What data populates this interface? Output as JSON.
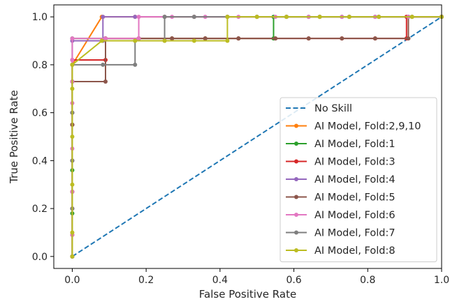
{
  "chart_data": {
    "type": "line",
    "title": "",
    "xlabel": "False Positive Rate",
    "ylabel": "True Positive Rate",
    "xlim": [
      -0.05,
      1.0
    ],
    "ylim": [
      -0.05,
      1.05
    ],
    "xticks": [
      "0.0",
      "0.2",
      "0.4",
      "0.6",
      "0.8",
      "1.0"
    ],
    "yticks": [
      "0.0",
      "0.2",
      "0.4",
      "0.6",
      "0.8",
      "1.0"
    ],
    "grid": false,
    "legend_position": "lower-right",
    "series": [
      {
        "name": "No Skill",
        "color": "#1f77b4",
        "style": "dashed",
        "markers": false,
        "x": [
          0,
          1
        ],
        "y": [
          0,
          1
        ]
      },
      {
        "name": "AI Model, Fold:2,9,10",
        "color": "#ff7f0e",
        "style": "solid",
        "markers": true,
        "x": [
          0,
          0,
          0,
          0,
          0,
          0.08,
          0.17,
          0.25,
          0.33,
          0.42,
          0.5,
          0.58,
          0.67,
          0.75,
          0.83,
          0.92,
          1.0
        ],
        "y": [
          0,
          0.2,
          0.4,
          0.6,
          0.8,
          1.0,
          1.0,
          1.0,
          1.0,
          1.0,
          1.0,
          1.0,
          1.0,
          1.0,
          1.0,
          1.0,
          1.0
        ]
      },
      {
        "name": "AI Model, Fold:1",
        "color": "#2ca02c",
        "style": "solid",
        "markers": true,
        "x": [
          0,
          0,
          0,
          0,
          0,
          0,
          0.09,
          0.18,
          0.27,
          0.36,
          0.45,
          0.545,
          0.545,
          0.64,
          0.73,
          0.82,
          0.91,
          1.0
        ],
        "y": [
          0,
          0.18,
          0.36,
          0.55,
          0.73,
          0.91,
          0.91,
          0.91,
          0.91,
          0.91,
          0.91,
          0.91,
          1.0,
          1.0,
          1.0,
          1.0,
          1.0,
          1.0
        ]
      },
      {
        "name": "AI Model, Fold:3",
        "color": "#d62728",
        "style": "solid",
        "markers": true,
        "x": [
          0,
          0,
          0,
          0,
          0,
          0.09,
          0.09,
          0.18,
          0.27,
          0.36,
          0.45,
          0.55,
          0.64,
          0.73,
          0.82,
          0.905,
          0.905,
          1.0
        ],
        "y": [
          0,
          0.09,
          0.27,
          0.55,
          0.82,
          0.82,
          0.91,
          0.91,
          0.91,
          0.91,
          0.91,
          0.91,
          0.91,
          0.91,
          0.91,
          0.91,
          1.0,
          1.0
        ]
      },
      {
        "name": "AI Model, Fold:4",
        "color": "#9467bd",
        "style": "solid",
        "markers": true,
        "x": [
          0,
          0,
          0,
          0,
          0,
          0.083,
          0.083,
          0.17,
          0.25,
          0.33,
          0.42,
          0.5,
          0.58,
          0.67,
          0.75,
          0.83,
          0.92,
          1.0
        ],
        "y": [
          0,
          0.2,
          0.4,
          0.6,
          0.9,
          0.9,
          1.0,
          1.0,
          1.0,
          1.0,
          1.0,
          1.0,
          1.0,
          1.0,
          1.0,
          1.0,
          1.0,
          1.0
        ]
      },
      {
        "name": "AI Model, Fold:5",
        "color": "#8c564b",
        "style": "solid",
        "markers": true,
        "x": [
          0,
          0,
          0,
          0,
          0.09,
          0.09,
          0.18,
          0.27,
          0.36,
          0.45,
          0.55,
          0.64,
          0.73,
          0.82,
          0.91,
          0.91,
          1.0
        ],
        "y": [
          0,
          0.27,
          0.55,
          0.73,
          0.73,
          0.91,
          0.91,
          0.91,
          0.91,
          0.91,
          0.91,
          0.91,
          0.91,
          0.91,
          0.91,
          1.0,
          1.0
        ]
      },
      {
        "name": "AI Model, Fold:6",
        "color": "#e377c2",
        "style": "solid",
        "markers": true,
        "x": [
          0,
          0,
          0,
          0,
          0,
          0,
          0,
          0,
          0.09,
          0.18,
          0.18,
          0.27,
          0.36,
          0.45,
          0.55,
          0.64,
          0.73,
          0.82,
          0.91,
          1.0
        ],
        "y": [
          0,
          0.09,
          0.27,
          0.45,
          0.64,
          0.73,
          0.82,
          0.91,
          0.91,
          0.91,
          1.0,
          1.0,
          1.0,
          1.0,
          1.0,
          1.0,
          1.0,
          1.0,
          1.0,
          1.0
        ]
      },
      {
        "name": "AI Model, Fold:7",
        "color": "#7f7f7f",
        "style": "solid",
        "markers": true,
        "x": [
          0,
          0,
          0,
          0,
          0,
          0.083,
          0.17,
          0.17,
          0.25,
          0.25,
          0.33,
          0.42,
          0.5,
          0.58,
          0.67,
          0.75,
          0.83,
          0.92,
          1.0
        ],
        "y": [
          0,
          0.2,
          0.4,
          0.6,
          0.8,
          0.8,
          0.8,
          0.9,
          0.9,
          1.0,
          1.0,
          1.0,
          1.0,
          1.0,
          1.0,
          1.0,
          1.0,
          1.0,
          1.0
        ]
      },
      {
        "name": "AI Model, Fold:8",
        "color": "#bcbd22",
        "style": "solid",
        "markers": true,
        "x": [
          0,
          0,
          0,
          0,
          0,
          0,
          0.08,
          0.17,
          0.25,
          0.33,
          0.42,
          0.42,
          0.5,
          0.58,
          0.67,
          0.75,
          0.83,
          0.92,
          1.0
        ],
        "y": [
          0,
          0.1,
          0.3,
          0.5,
          0.7,
          0.8,
          0.9,
          0.9,
          0.9,
          0.9,
          0.9,
          1.0,
          1.0,
          1.0,
          1.0,
          1.0,
          1.0,
          1.0,
          1.0
        ]
      }
    ]
  }
}
